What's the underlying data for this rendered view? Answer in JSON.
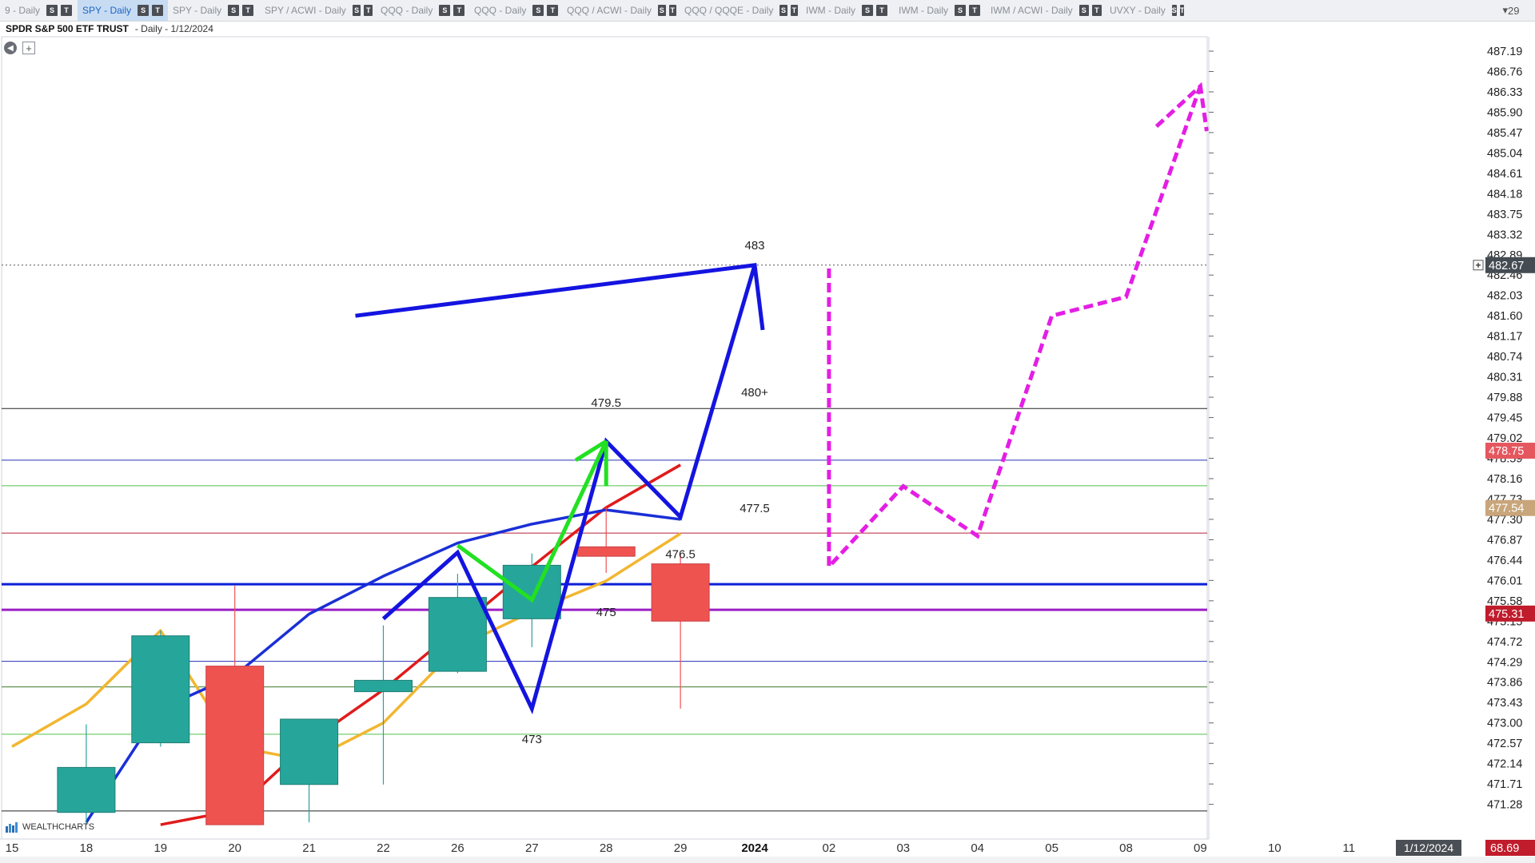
{
  "tabs": [
    {
      "label": "9 - Daily",
      "badges": [
        "S",
        "T"
      ],
      "active": false
    },
    {
      "label": "SPY - Daily",
      "badges": [
        "S",
        "T"
      ],
      "active": true
    },
    {
      "label": "SPY - Daily",
      "badges": [
        "S",
        "T"
      ],
      "active": false
    },
    {
      "label": "SPY / ACWI - Daily",
      "badges": [
        "S",
        "T"
      ],
      "active": false
    },
    {
      "label": "QQQ - Daily",
      "badges": [
        "S",
        "T"
      ],
      "active": false
    },
    {
      "label": "QQQ - Daily",
      "badges": [
        "S",
        "T"
      ],
      "active": false
    },
    {
      "label": "QQQ / ACWI - Daily",
      "badges": [
        "S",
        "T"
      ],
      "active": false
    },
    {
      "label": "QQQ / QQQE - Daily",
      "badges": [
        "S",
        "T"
      ],
      "active": false
    },
    {
      "label": "IWM - Daily",
      "badges": [
        "S",
        "T"
      ],
      "active": false
    },
    {
      "label": "IWM - Daily",
      "badges": [
        "S",
        "T"
      ],
      "active": false
    },
    {
      "label": "IWM / ACWI - Daily",
      "badges": [
        "S",
        "T"
      ],
      "active": false
    },
    {
      "label": "UVXY - Daily",
      "badges": [
        "S",
        "T"
      ],
      "active": false
    }
  ],
  "tab_overflow": "29",
  "header": {
    "symbol_name": "SPDR S&P 500 ETF TRUST",
    "interval_date": "- Daily - 1/12/2024"
  },
  "logo_text": "WEALTHCHARTS",
  "chart_data": {
    "type": "candlestick",
    "x_labels": [
      "15",
      "18",
      "19",
      "20",
      "21",
      "22",
      "26",
      "27",
      "28",
      "29",
      "2024",
      "02",
      "03",
      "04",
      "05",
      "08",
      "09",
      "10",
      "11"
    ],
    "y_ticks": [
      "487.19",
      "486.76",
      "486.33",
      "485.90",
      "485.47",
      "485.04",
      "484.61",
      "484.18",
      "483.75",
      "483.32",
      "482.89",
      "482.46",
      "482.03",
      "481.60",
      "481.17",
      "480.74",
      "480.31",
      "479.88",
      "479.45",
      "479.02",
      "478.59",
      "478.16",
      "477.73",
      "477.30",
      "476.87",
      "476.44",
      "476.01",
      "475.58",
      "475.15",
      "474.72",
      "474.29",
      "473.86",
      "473.43",
      "473.00",
      "472.57",
      "472.14",
      "471.71",
      "471.28"
    ],
    "ylim": [
      470.85,
      487.4
    ],
    "candles": [
      {
        "x": "18",
        "open": 471.11,
        "high": 472.97,
        "low": 470.85,
        "close": 472.06
      },
      {
        "x": "19",
        "open": 472.58,
        "high": 474.95,
        "low": 472.5,
        "close": 474.84
      },
      {
        "x": "20",
        "open": 474.2,
        "high": 475.9,
        "low": 470.85,
        "close": 470.85
      },
      {
        "x": "21",
        "open": 471.7,
        "high": 473.08,
        "low": 470.9,
        "close": 473.08
      },
      {
        "x": "22",
        "open": 473.66,
        "high": 475.06,
        "low": 471.7,
        "close": 473.9
      },
      {
        "x": "26",
        "open": 474.09,
        "high": 476.15,
        "low": 474.05,
        "close": 475.65
      },
      {
        "x": "27",
        "open": 475.2,
        "high": 476.58,
        "low": 474.6,
        "close": 476.33
      },
      {
        "x": "28",
        "open": 476.72,
        "high": 477.55,
        "low": 476.17,
        "close": 476.52
      },
      {
        "x": "29",
        "open": 476.36,
        "high": 476.58,
        "low": 473.3,
        "close": 475.15
      }
    ],
    "moving_averages": [
      {
        "color": "#f2b630",
        "points": [
          [
            "15",
            472.5
          ],
          [
            "18",
            473.4
          ],
          [
            "19",
            474.95
          ],
          [
            "20",
            472.5
          ],
          [
            "21",
            472.2
          ],
          [
            "22",
            473.0
          ],
          [
            "26",
            474.6
          ],
          [
            "27",
            475.35
          ],
          [
            "28",
            476.0
          ],
          [
            "29",
            477.0
          ]
        ]
      },
      {
        "color": "#e01b1b",
        "points": [
          [
            "19",
            470.85
          ],
          [
            "20",
            471.15
          ],
          [
            "21",
            472.6
          ],
          [
            "22",
            473.7
          ],
          [
            "26",
            475.0
          ],
          [
            "27",
            476.3
          ],
          [
            "28",
            477.55
          ],
          [
            "29",
            478.45
          ]
        ]
      },
      {
        "color": "#1a2fd6",
        "points": [
          [
            "18",
            470.9
          ],
          [
            "19",
            473.3
          ],
          [
            "20",
            474.0
          ],
          [
            "21",
            475.3
          ],
          [
            "22",
            476.1
          ],
          [
            "26",
            476.8
          ],
          [
            "27",
            477.2
          ],
          [
            "28",
            477.5
          ],
          [
            "29",
            477.3
          ]
        ]
      }
    ],
    "horizontal_levels": [
      {
        "price": 479.64,
        "label": "479.64",
        "color": "#222222",
        "width": 1
      },
      {
        "price": 478.55,
        "label": "478.55",
        "color": "#2630b8",
        "width": 1
      },
      {
        "price": 478.01,
        "label": "478.01",
        "color": "#53c24a",
        "width": 1
      },
      {
        "price": 477.01,
        "label": "477.01",
        "color": "#b4233a",
        "width": 1
      },
      {
        "price": 475.93,
        "label": "475.93",
        "color": "#0a1fd6",
        "width": 3
      },
      {
        "price": 475.39,
        "label": "475.39",
        "color": "#9b1fc4",
        "width": 3
      },
      {
        "price": 474.3,
        "label": "474.30",
        "color": "#2630b8",
        "width": 1
      },
      {
        "price": 473.76,
        "label": "473.76",
        "color": "#3d7b2a",
        "width": 1
      },
      {
        "price": 472.76,
        "label": "472.76",
        "color": "#53c24a",
        "width": 1
      },
      {
        "price": 471.14,
        "label": "471.14",
        "color": "#222222",
        "width": 1
      }
    ],
    "price_badges": [
      {
        "price": 482.67,
        "label": "482.67",
        "color": "#444b52"
      },
      {
        "price": 478.75,
        "label": "478.75",
        "color": "#e5575f"
      },
      {
        "price": 477.54,
        "label": "477.54",
        "color": "#c8a57a"
      },
      {
        "price": 475.31,
        "label": "475.31",
        "color": "#c01c2c"
      }
    ],
    "crosshair_price": 482.67,
    "vertical_marker": {
      "x": "10",
      "color": "#8080f0"
    },
    "annotations": [
      {
        "text": "483",
        "x": "2024",
        "y": 483.0
      },
      {
        "text": "480+",
        "x": "2024",
        "y": 479.9
      },
      {
        "text": "479.5",
        "x": "28",
        "y": 479.68
      },
      {
        "text": "477.5",
        "x": "2024",
        "y": 477.45
      },
      {
        "text": "476.5",
        "x": "29",
        "y": 476.48
      },
      {
        "text": "475",
        "x": "28",
        "y": 475.26
      },
      {
        "text": "473",
        "x": "27",
        "y": 472.57
      }
    ],
    "drawings": [
      {
        "color": "#1414e0",
        "width": 5,
        "style": "solid",
        "points": [
          [
            "22",
            475.2
          ],
          [
            "26",
            476.6
          ],
          [
            "27",
            473.3
          ],
          [
            "28",
            478.95
          ],
          [
            "29",
            477.35
          ],
          [
            "2024",
            482.67
          ]
        ]
      },
      {
        "color": "#1414e0",
        "width": 5,
        "style": "solid",
        "points": [
          [
            "22",
            481.6
          ],
          [
            "2024",
            482.67
          ],
          [
            "2024",
            481.3
          ]
        ],
        "x_offsets": [
          -35,
          0,
          10
        ]
      },
      {
        "color": "#22e022",
        "width": 5,
        "style": "solid",
        "points": [
          [
            "26",
            476.75
          ],
          [
            "27",
            475.6
          ],
          [
            "28",
            478.95
          ],
          [
            "28",
            478.0
          ]
        ]
      },
      {
        "color": "#22e022",
        "width": 5,
        "style": "solid",
        "points": [
          [
            "28",
            478.55
          ],
          [
            "28",
            478.95
          ]
        ],
        "x_offsets": [
          -38,
          0
        ]
      },
      {
        "color": "#e41ee4",
        "width": 5,
        "style": "dashed",
        "points": [
          [
            "02",
            482.6
          ],
          [
            "02",
            476.3
          ],
          [
            "03",
            478.0
          ],
          [
            "04",
            476.95
          ],
          [
            "05",
            481.6
          ],
          [
            "08",
            482.0
          ],
          [
            "09",
            486.45
          ]
        ]
      },
      {
        "color": "#e41ee4",
        "width": 5,
        "style": "dashed",
        "points": [
          [
            "08",
            485.6
          ],
          [
            "09",
            486.45
          ],
          [
            "09",
            485.5
          ]
        ],
        "x_offsets": [
          38,
          0,
          8
        ]
      }
    ],
    "bottom_labels": {
      "date_box": "1/12/2024",
      "value_box": "68.69"
    }
  }
}
